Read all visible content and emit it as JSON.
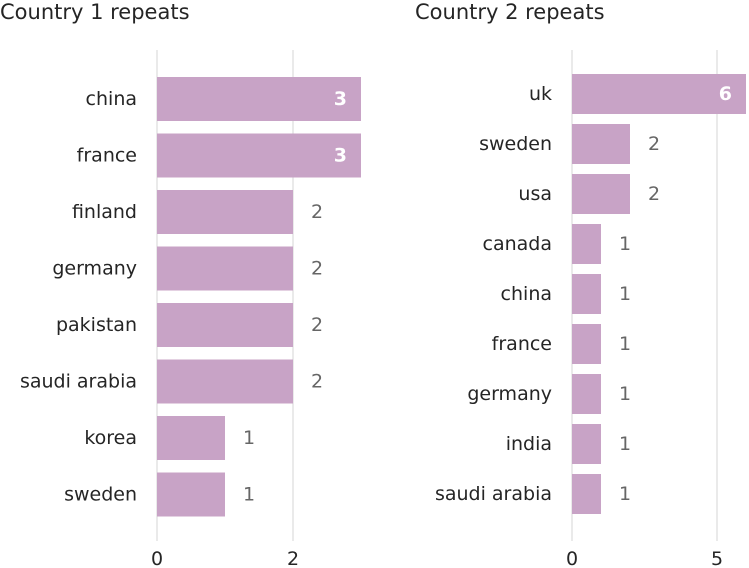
{
  "colors": {
    "bar": "#c8a3c6",
    "grid": "#e3e3e3",
    "text": "#252525",
    "value_text": "#666666",
    "value_text_inside": "#ffffff"
  },
  "chart_data": [
    {
      "type": "bar",
      "orientation": "horizontal",
      "title": "Country 1 repeats",
      "categories": [
        "china",
        "france",
        "finland",
        "germany",
        "pakistan",
        "saudi arabia",
        "korea",
        "sweden"
      ],
      "values": [
        3,
        3,
        2,
        2,
        2,
        2,
        1,
        1
      ],
      "xticks": [
        0,
        2
      ],
      "xlim": [
        0,
        3
      ],
      "grid": true
    },
    {
      "type": "bar",
      "orientation": "horizontal",
      "title": "Country 2 repeats",
      "categories": [
        "uk",
        "sweden",
        "usa",
        "canada",
        "china",
        "france",
        "germany",
        "india",
        "saudi arabia"
      ],
      "values": [
        6,
        2,
        2,
        1,
        1,
        1,
        1,
        1,
        1
      ],
      "xticks": [
        0,
        5
      ],
      "xlim": [
        0,
        6
      ],
      "grid": true
    }
  ]
}
